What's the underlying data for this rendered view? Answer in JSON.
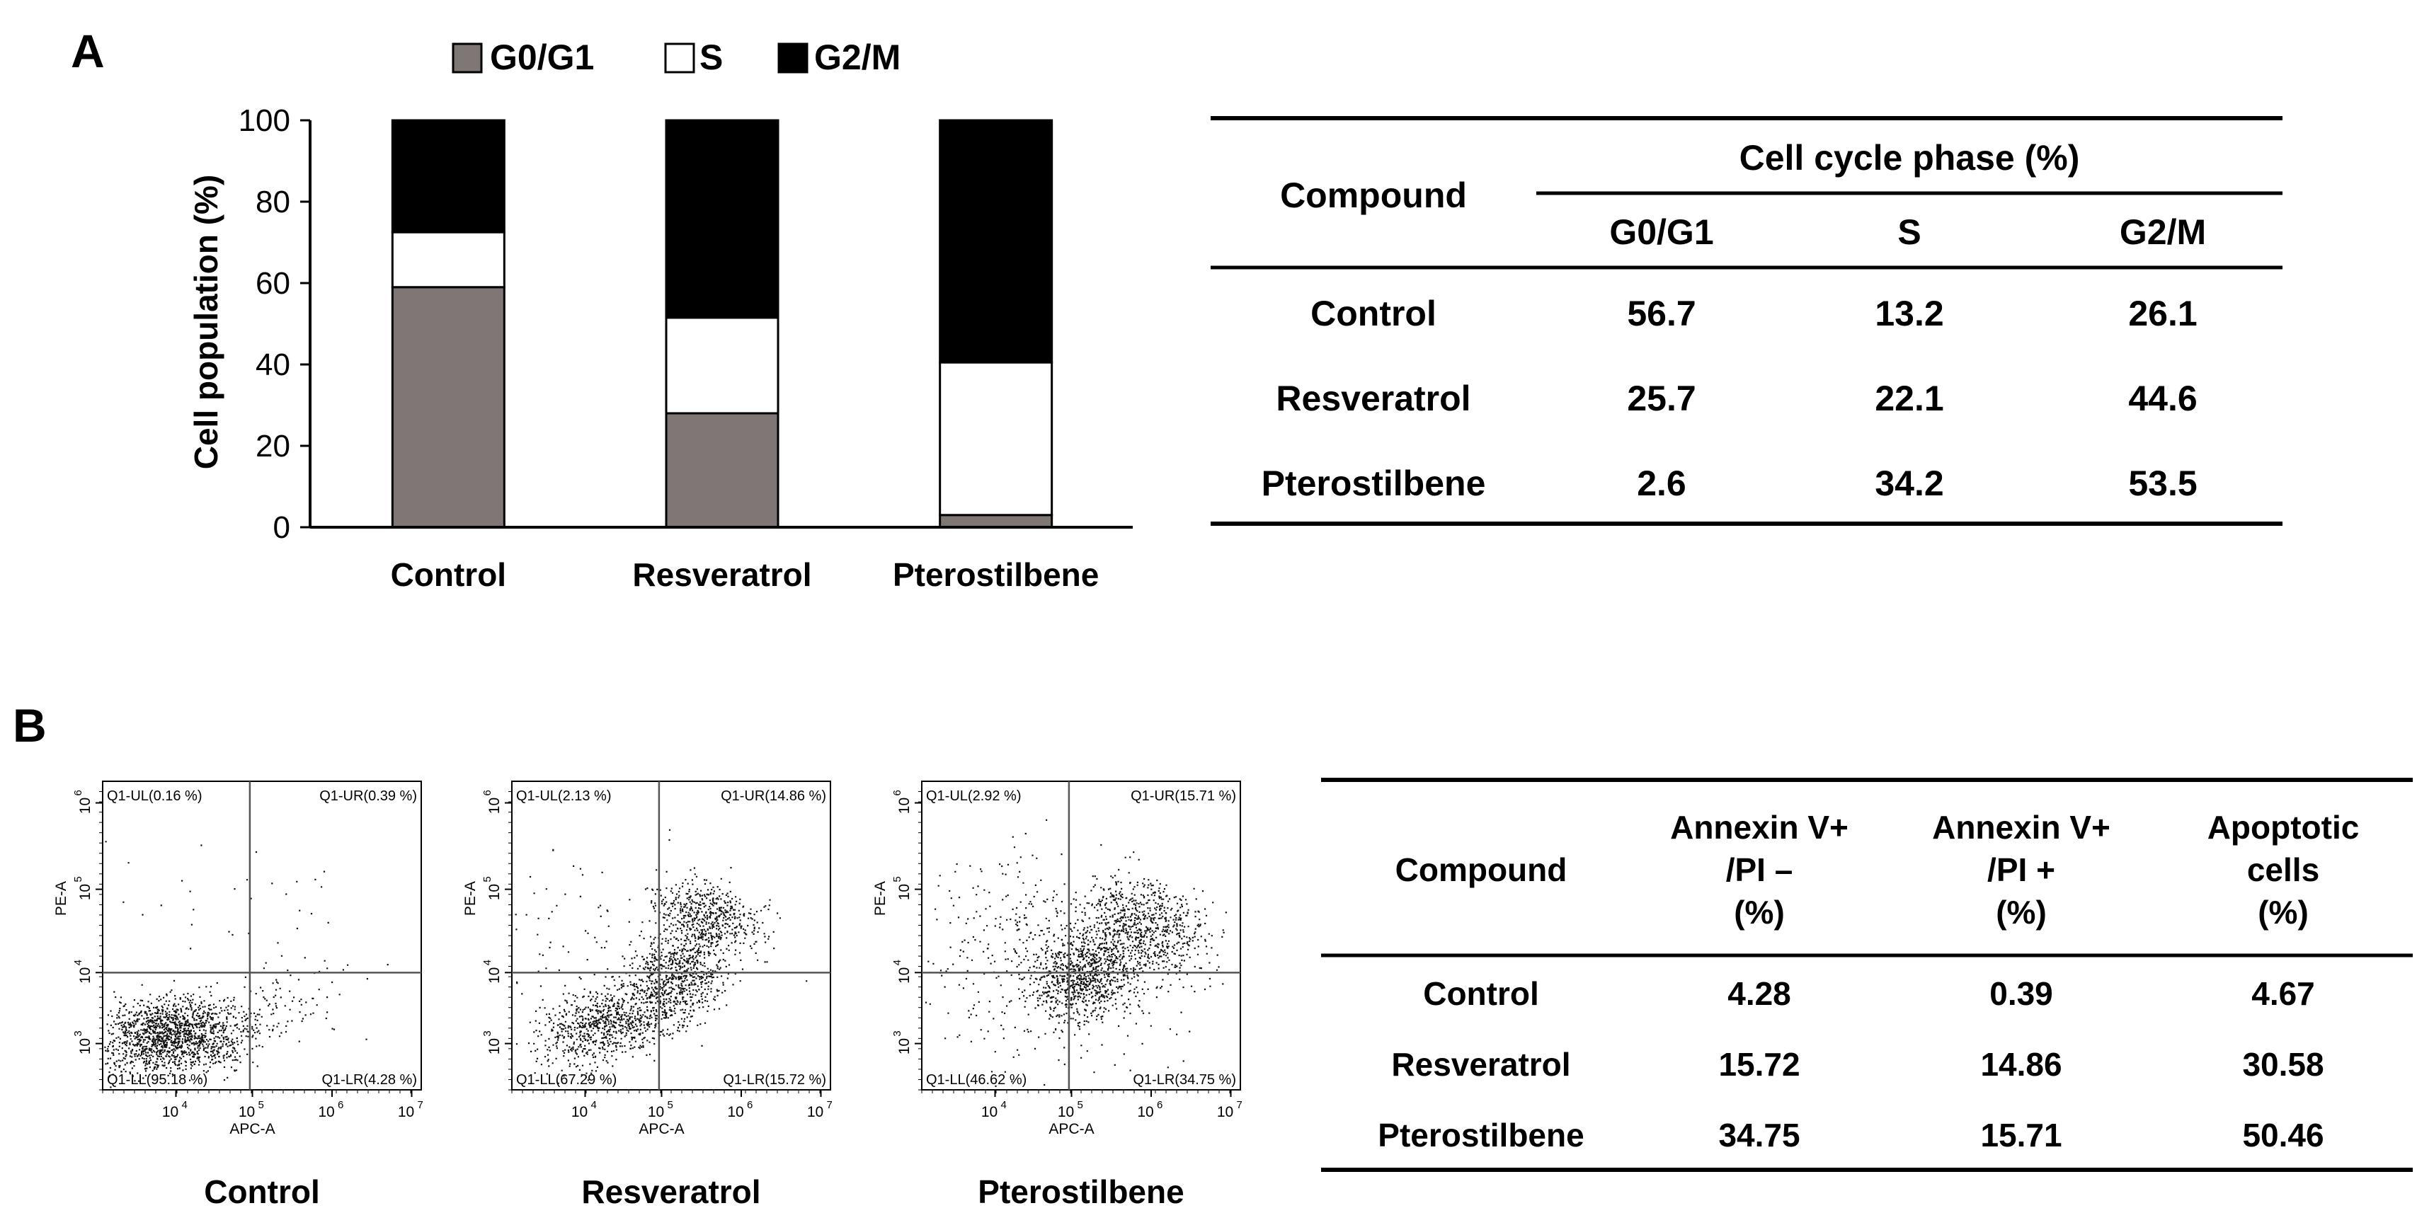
{
  "panel_a": {
    "label": "A",
    "chart_data": {
      "type": "bar",
      "stacked": true,
      "categories": [
        "Control",
        "Resveratrol",
        "Pterostilbene"
      ],
      "series": [
        {
          "name": "G0/G1",
          "values": [
            59,
            28,
            3
          ],
          "color": "#7f7775"
        },
        {
          "name": "S",
          "values": [
            13.5,
            23.5,
            37.5
          ],
          "color": "#ffffff"
        },
        {
          "name": "G2/M",
          "values": [
            27.5,
            48.5,
            59.5
          ],
          "color": "#000000"
        }
      ],
      "ylabel": "Cell population (%)",
      "ylim": [
        0,
        100
      ],
      "yticks": [
        "0",
        "20",
        "40",
        "60",
        "80",
        "100"
      ],
      "legend_position": "top"
    },
    "table": {
      "compound_header": "Compound",
      "group_header": "Cell cycle phase (%)",
      "columns": [
        "G0/G1",
        "S",
        "G2/M"
      ],
      "rows": [
        {
          "compound": "Control",
          "values": [
            "56.7",
            "13.2",
            "26.1"
          ]
        },
        {
          "compound": "Resveratrol",
          "values": [
            "25.7",
            "22.1",
            "44.6"
          ]
        },
        {
          "compound": "Pterostilbene",
          "values": [
            "2.6",
            "34.2",
            "53.5"
          ]
        }
      ]
    }
  },
  "panel_b": {
    "label": "B",
    "flow_plots": [
      {
        "title": "Control",
        "UL": "Q1-UL(0.16 %)",
        "UR": "Q1-UR(0.39 %)",
        "LL": "Q1-LL(95.18 %)",
        "LR": "Q1-LR(4.28 %)"
      },
      {
        "title": "Resveratrol",
        "UL": "Q1-UL(2.13 %)",
        "UR": "Q1-UR(14.86 %)",
        "LL": "Q1-LL(67.29 %)",
        "LR": "Q1-LR(15.72 %)"
      },
      {
        "title": "Pterostilbene",
        "UL": "Q1-UL(2.92 %)",
        "UR": "Q1-UR(15.71 %)",
        "LL": "Q1-LL(46.62 %)",
        "LR": "Q1-LR(34.75 %)"
      }
    ],
    "axes": {
      "x_label": "APC-A",
      "y_label": "PE-A",
      "x_ticks": [
        "10",
        "10",
        "10",
        "10"
      ],
      "x_exponents": [
        "4",
        "5",
        "6",
        "7"
      ],
      "y_ticks": [
        "10",
        "10",
        "10",
        "10"
      ],
      "y_exponents": [
        "3",
        "4",
        "5",
        "6"
      ]
    },
    "table": {
      "headers": [
        [
          "Compound"
        ],
        [
          "Annexin V+",
          "/PI –",
          "(%)"
        ],
        [
          "Annexin V+",
          "/PI +",
          "(%)"
        ],
        [
          "Apoptotic",
          "cells",
          "(%)"
        ]
      ],
      "rows": [
        {
          "compound": "Control",
          "values": [
            "4.28",
            "0.39",
            "4.67"
          ]
        },
        {
          "compound": "Resveratrol",
          "values": [
            "15.72",
            "14.86",
            "30.58"
          ]
        },
        {
          "compound": "Pterostilbene",
          "values": [
            "34.75",
            "15.71",
            "50.46"
          ]
        }
      ]
    }
  }
}
